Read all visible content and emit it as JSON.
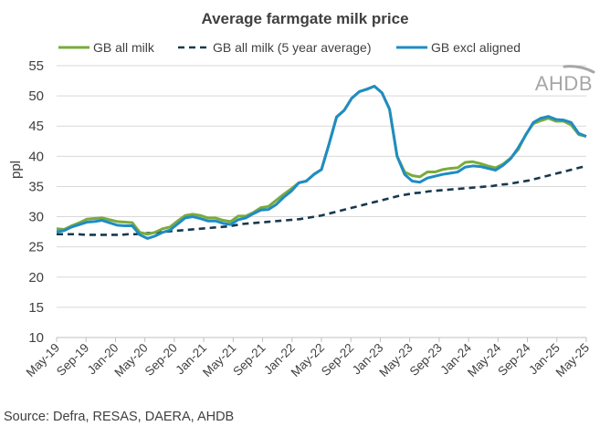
{
  "chart_data": {
    "type": "line",
    "title": "Average farmgate milk price",
    "xlabel": "",
    "ylabel": "ppl",
    "ylim": [
      10,
      55
    ],
    "yticks": [
      10,
      15,
      20,
      25,
      30,
      35,
      40,
      45,
      50,
      55
    ],
    "grid": true,
    "legend_position": "top",
    "x_start": "May-19",
    "x_tick_labels": [
      "May-19",
      "Sep-19",
      "Jan-20",
      "May-20",
      "Sep-20",
      "Jan-21",
      "May-21",
      "Sep-21",
      "Jan-22",
      "May-22",
      "Sep-22",
      "Jan-23",
      "May-23",
      "Sep-23",
      "Jan-24",
      "May-24",
      "Sep-24",
      "Jan-25",
      "May-25"
    ],
    "series": [
      {
        "name": "GB all milk",
        "color": "#7aab3b",
        "style": "solid",
        "values": [
          28.0,
          27.9,
          28.5,
          29.0,
          29.6,
          29.7,
          29.8,
          29.5,
          29.2,
          29.1,
          29.0,
          27.4,
          27.1,
          27.4,
          28.0,
          28.3,
          29.3,
          30.2,
          30.4,
          30.2,
          29.8,
          29.8,
          29.4,
          29.2,
          30.1,
          30.1,
          30.7,
          31.5,
          31.7,
          32.7,
          33.7,
          34.6,
          35.6,
          35.9,
          37.0,
          37.8,
          42.0,
          46.5,
          47.6,
          49.6,
          50.7,
          51.1,
          51.6,
          50.5,
          47.8,
          40.0,
          37.4,
          36.8,
          36.6,
          37.4,
          37.4,
          37.8,
          38.0,
          38.1,
          39.0,
          39.1,
          38.8,
          38.4,
          38.1,
          38.7,
          39.7,
          41.1,
          43.6,
          45.4,
          45.9,
          46.3,
          45.8,
          45.8,
          45.2,
          43.6,
          43.3
        ]
      },
      {
        "name": "GB all milk (5 year average)",
        "color": "#17394d",
        "style": "dashed",
        "values": [
          27.1,
          27.1,
          27.1,
          27.1,
          27.0,
          27.0,
          27.0,
          27.0,
          27.0,
          27.0,
          27.1,
          27.1,
          27.2,
          27.3,
          27.4,
          27.5,
          27.6,
          27.7,
          27.8,
          27.9,
          28.0,
          28.1,
          28.2,
          28.3,
          28.4,
          28.6,
          28.8,
          28.9,
          29.0,
          29.1,
          29.2,
          29.3,
          29.4,
          29.5,
          29.6,
          29.8,
          30.0,
          30.2,
          30.5,
          30.8,
          31.1,
          31.4,
          31.7,
          32.0,
          32.3,
          32.6,
          32.9,
          33.2,
          33.5,
          33.7,
          33.9,
          34.0,
          34.2,
          34.3,
          34.4,
          34.5,
          34.6,
          34.7,
          34.8,
          34.9,
          35.0,
          35.1,
          35.3,
          35.4,
          35.6,
          35.8,
          36.0,
          36.3,
          36.6,
          36.9,
          37.2,
          37.5,
          37.8,
          38.1,
          38.4
        ]
      },
      {
        "name": "GB excl aligned",
        "color": "#1f8cc4",
        "style": "solid",
        "values": [
          27.5,
          27.7,
          28.3,
          28.7,
          29.1,
          29.2,
          29.4,
          29.0,
          28.6,
          28.5,
          28.5,
          27.0,
          26.4,
          26.8,
          27.4,
          27.8,
          28.8,
          29.8,
          30.0,
          29.7,
          29.3,
          29.3,
          28.9,
          28.7,
          29.5,
          29.8,
          30.5,
          31.1,
          31.2,
          32.0,
          33.2,
          34.2,
          35.6,
          35.9,
          37.0,
          37.8,
          42.0,
          46.5,
          47.6,
          49.6,
          50.7,
          51.1,
          51.6,
          50.5,
          47.8,
          40.0,
          37.0,
          35.9,
          35.7,
          36.4,
          36.7,
          37.0,
          37.2,
          37.4,
          38.2,
          38.4,
          38.3,
          38.0,
          37.7,
          38.5,
          39.6,
          41.4,
          43.5,
          45.6,
          46.3,
          46.6,
          46.1,
          46.0,
          45.6,
          43.8,
          43.3
        ]
      }
    ]
  },
  "source": "Source: Defra, RESAS, DAERA, AHDB",
  "logo": "AHDB"
}
